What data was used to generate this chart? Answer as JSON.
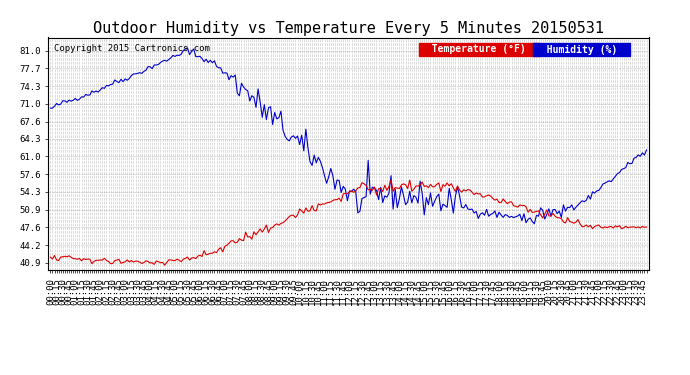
{
  "title": "Outdoor Humidity vs Temperature Every 5 Minutes 20150531",
  "copyright": "Copyright 2015 Cartronics.com",
  "background_color": "#ffffff",
  "grid_color": "#aaaaaa",
  "y_ticks": [
    40.9,
    44.2,
    47.6,
    50.9,
    54.3,
    57.6,
    61.0,
    64.3,
    67.6,
    71.0,
    74.3,
    77.7,
    81.0
  ],
  "y_min": 39.5,
  "y_max": 83.5,
  "temp_color": "#dd0000",
  "humidity_color": "#0000cc",
  "temp_label": "Temperature (°F)",
  "humidity_label": "Humidity (%)",
  "legend_temp_bg": "#dd0000",
  "legend_humidity_bg": "#0000cc",
  "title_fontsize": 11,
  "axis_fontsize": 6.5,
  "copyright_fontsize": 6.5
}
